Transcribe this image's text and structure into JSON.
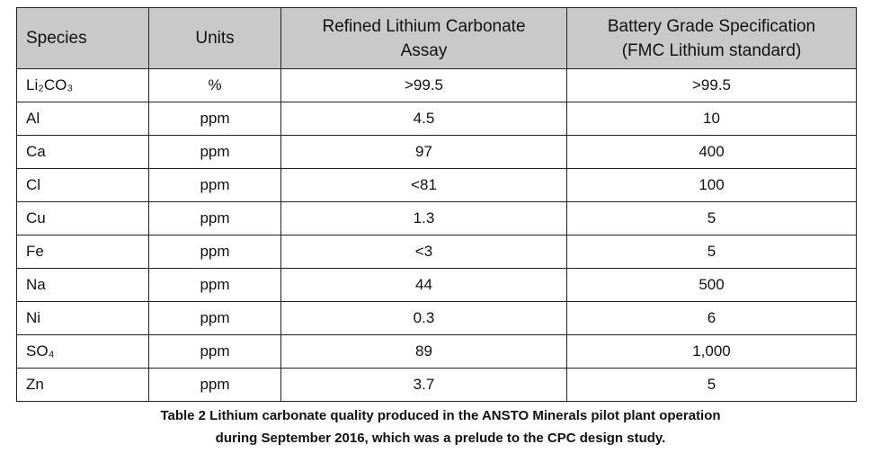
{
  "table": {
    "header": [
      "Species",
      "Units",
      "Refined Lithium Carbonate Assay",
      "Battery Grade Specification (FMC Lithium standard)"
    ],
    "rows": [
      [
        "Li₂CO₃",
        "%",
        ">99.5",
        ">99.5"
      ],
      [
        "Al",
        "ppm",
        "4.5",
        "10"
      ],
      [
        "Ca",
        "ppm",
        "97",
        "400"
      ],
      [
        "Cl",
        "ppm",
        "<81",
        "100"
      ],
      [
        "Cu",
        "ppm",
        "1.3",
        "5"
      ],
      [
        "Fe",
        "ppm",
        "<3",
        "5"
      ],
      [
        "Na",
        "ppm",
        "44",
        "500"
      ],
      [
        "Ni",
        "ppm",
        "0.3",
        "6"
      ],
      [
        "SO₄",
        "ppm",
        "89",
        "1,000"
      ],
      [
        "Zn",
        "ppm",
        "3.7",
        "5"
      ]
    ]
  },
  "caption": "Table 2  Lithium carbonate quality produced in the ANSTO Minerals pilot plant operation during September 2016, which was a prelude to the CPC design study."
}
